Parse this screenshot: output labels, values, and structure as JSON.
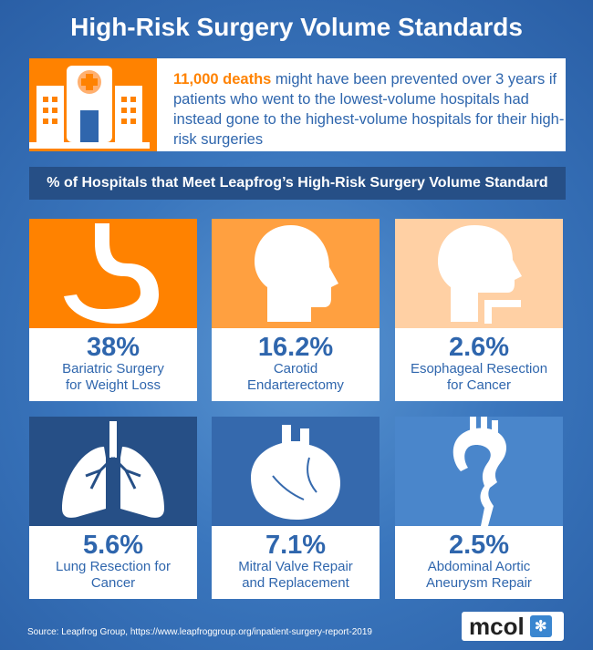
{
  "title": "High-Risk Surgery Volume Standards",
  "hero": {
    "highlight": "11,000 deaths",
    "text": " might have been prevented over 3 years if patients who went to the lowest-volume hospitals had instead gone to the highest-volume hospitals for their high-risk surgeries"
  },
  "banner": "% of Hospitals that Meet Leapfrog’s High-Risk Surgery Volume Standard",
  "cards": [
    {
      "pct": "38%",
      "l1": "Bariatric Surgery",
      "l2": "for Weight Loss",
      "icon": "stomach-icon",
      "color": "#ff8200"
    },
    {
      "pct": "16.2%",
      "l1": "Carotid",
      "l2": "Endarterectomy",
      "icon": "head-icon",
      "color": "#ffa040"
    },
    {
      "pct": "2.6%",
      "l1": "Esophageal Resection",
      "l2": "for Cancer",
      "icon": "head-esophagus-icon",
      "color": "#ffd0a4"
    },
    {
      "pct": "5.6%",
      "l1": "Lung Resection for",
      "l2": "Cancer",
      "icon": "lungs-icon",
      "color": "#264f86"
    },
    {
      "pct": "7.1%",
      "l1": "Mitral Valve Repair",
      "l2": "and Replacement",
      "icon": "heart-icon",
      "color": "#3569ad"
    },
    {
      "pct": "2.5%",
      "l1": "Abdominal Aortic",
      "l2": "Aneurysm Repair",
      "icon": "aorta-icon",
      "color": "#4a86cb"
    }
  ],
  "source": "Source:  Leapfrog Group, https://www.leapfroggroup.org/inpatient-surgery-report-2019",
  "logo": "mcol"
}
